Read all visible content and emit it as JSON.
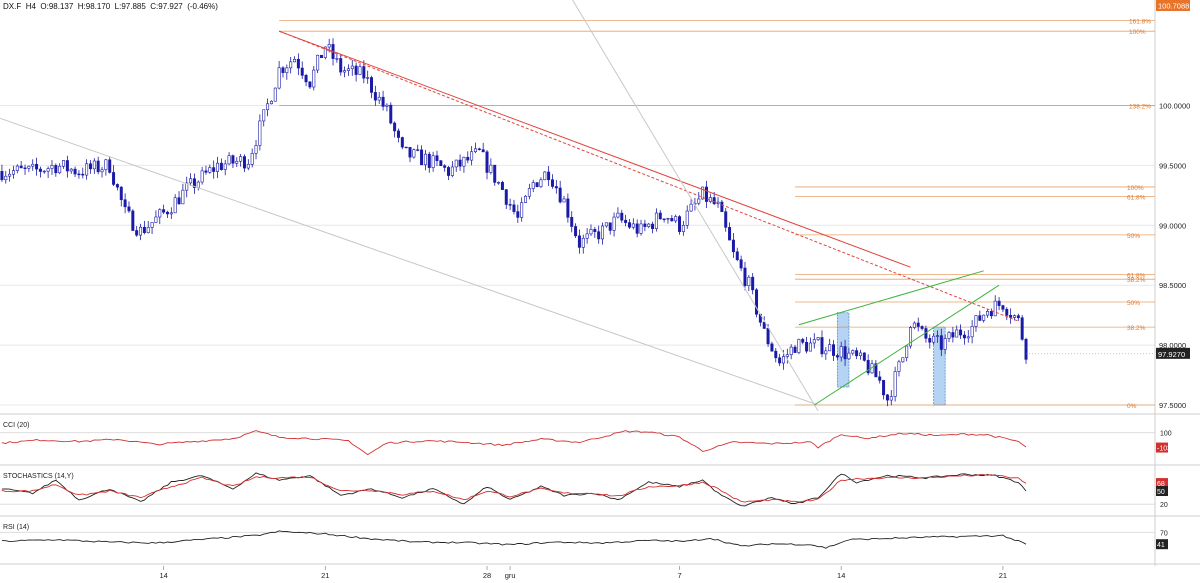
{
  "header": {
    "symbol": "DX.F",
    "timeframe": "H4",
    "open": "O:98.137",
    "high": "H:98.170",
    "low": "L:97.885",
    "close": "C:97.927",
    "change": "(-0.46%)"
  },
  "colors": {
    "up_candle": "#ffffff",
    "down_candle": "#1a1aa8",
    "wick": "#1a1aa8",
    "trend_red": "#e0443c",
    "channel_green": "#3cb43c",
    "fib_orange": "#e07a2a",
    "price_marker": "#222222",
    "top_marker": "#e8742a",
    "highlight_box": "#9cc4ee",
    "grid": "#e8e8e8",
    "indicator_red": "#d43030",
    "indicator_black": "#222222"
  },
  "chart_data": {
    "type": "candlestick",
    "title": "",
    "price_axis": {
      "ticks": [
        "100.0000",
        "99.5000",
        "99.0000",
        "98.5000",
        "98.0000",
        "97.5000"
      ],
      "tick_values": [
        100.0,
        99.5,
        99.0,
        98.5,
        98.0,
        97.5
      ],
      "range": [
        97.45,
        100.78
      ],
      "last_price": "97.9270",
      "last_price_value": 97.927,
      "top_marker": "100.7088",
      "top_marker_value": 100.7088
    },
    "time_axis": {
      "labels": [
        "14",
        "21",
        "28",
        "gru",
        "7",
        "14",
        "21"
      ],
      "label_bar_index": [
        42,
        84,
        126,
        132,
        176,
        218,
        260
      ]
    },
    "bar_count": 300,
    "close_anchors": [
      [
        0,
        99.45
      ],
      [
        8,
        99.45
      ],
      [
        14,
        99.5
      ],
      [
        20,
        99.45
      ],
      [
        28,
        99.5
      ],
      [
        32,
        99.1
      ],
      [
        36,
        98.95
      ],
      [
        42,
        99.1
      ],
      [
        48,
        99.3
      ],
      [
        56,
        99.5
      ],
      [
        64,
        99.55
      ],
      [
        68,
        99.9
      ],
      [
        72,
        100.3
      ],
      [
        76,
        100.4
      ],
      [
        80,
        100.2
      ],
      [
        84,
        100.5
      ],
      [
        88,
        100.3
      ],
      [
        94,
        100.25
      ],
      [
        100,
        99.95
      ],
      [
        104,
        99.6
      ],
      [
        110,
        99.55
      ],
      [
        116,
        99.45
      ],
      [
        124,
        99.6
      ],
      [
        130,
        99.3
      ],
      [
        134,
        99.05
      ],
      [
        138,
        99.35
      ],
      [
        142,
        99.45
      ],
      [
        146,
        99.2
      ],
      [
        150,
        98.85
      ],
      [
        156,
        98.95
      ],
      [
        160,
        99.05
      ],
      [
        166,
        98.95
      ],
      [
        172,
        99.1
      ],
      [
        176,
        99.0
      ],
      [
        182,
        99.25
      ],
      [
        186,
        99.15
      ],
      [
        190,
        98.75
      ],
      [
        194,
        98.5
      ],
      [
        198,
        98.1
      ],
      [
        202,
        97.85
      ],
      [
        206,
        98.0
      ],
      [
        212,
        98.0
      ],
      [
        218,
        97.95
      ],
      [
        224,
        97.85
      ],
      [
        228,
        97.7
      ],
      [
        230,
        97.55
      ],
      [
        234,
        97.9
      ],
      [
        236,
        98.2
      ],
      [
        240,
        98.05
      ],
      [
        244,
        98.0
      ],
      [
        248,
        98.1
      ],
      [
        252,
        98.15
      ],
      [
        256,
        98.3
      ],
      [
        260,
        98.35
      ],
      [
        264,
        98.2
      ],
      [
        266,
        97.95
      ]
    ],
    "fibonacci_upper": [
      {
        "label": "161.8%",
        "price": 100.7088
      },
      {
        "label": "100%",
        "price": 100.62
      },
      {
        "label": "138.2%",
        "price": 100.0
      }
    ],
    "fibonacci_lower": [
      {
        "label": "100%",
        "price": 99.32
      },
      {
        "label": "61.8%",
        "price": 99.24
      },
      {
        "label": "50%",
        "price": 98.92
      },
      {
        "label": "61.8%",
        "price": 98.59
      },
      {
        "label": "38.2%",
        "price": 98.55
      },
      {
        "label": "50%",
        "price": 98.36
      },
      {
        "label": "38.2%",
        "price": 98.15
      },
      {
        "label": "0%",
        "price": 97.5
      }
    ],
    "trendlines": [
      {
        "name": "red-downtrend-solid",
        "style": "solid",
        "color": "#e0443c",
        "from": [
          72,
          100.62
        ],
        "to": [
          236,
          98.65
        ]
      },
      {
        "name": "red-downtrend-dashed",
        "style": "dashed",
        "color": "#e0443c",
        "from": [
          72,
          100.62
        ],
        "to": [
          264,
          98.2
        ]
      },
      {
        "name": "grey-lower-channel",
        "style": "solid",
        "color": "#c8c8c8",
        "from": [
          -10,
          100.0
        ],
        "to": [
          212,
          97.5
        ]
      },
      {
        "name": "grey-diagonal",
        "style": "solid",
        "color": "#c8c8c8",
        "from": [
          146,
          101.0
        ],
        "to": [
          212,
          97.45
        ]
      },
      {
        "name": "green-channel-top",
        "style": "solid",
        "color": "#3cb43c",
        "from": [
          207,
          98.17
        ],
        "to": [
          255,
          98.62
        ]
      },
      {
        "name": "green-channel-bottom",
        "style": "solid",
        "color": "#3cb43c",
        "from": [
          211,
          97.5
        ],
        "to": [
          259,
          98.5
        ]
      }
    ],
    "highlight_boxes": [
      {
        "from_bar": 217,
        "to_bar": 220,
        "from_price": 97.65,
        "to_price": 98.27
      },
      {
        "from_bar": 242,
        "to_bar": 245,
        "from_price": 97.5,
        "to_price": 98.15
      }
    ],
    "indicators": [
      {
        "name": "CCI (20)",
        "levels": [
          "100"
        ],
        "level_values": [
          100
        ],
        "range": [
          -300,
          300
        ],
        "marker": "-103",
        "marker_value": -103,
        "marker_color": "#d43030",
        "lines": [
          {
            "color": "#d43030",
            "anchors": [
              [
                0,
                -40
              ],
              [
                10,
                0
              ],
              [
                20,
                -20
              ],
              [
                30,
                10
              ],
              [
                40,
                -60
              ],
              [
                50,
                -20
              ],
              [
                60,
                20
              ],
              [
                66,
                120
              ],
              [
                72,
                40
              ],
              [
                84,
                10
              ],
              [
                90,
                -10
              ],
              [
                95,
                -200
              ],
              [
                100,
                -40
              ],
              [
                110,
                -10
              ],
              [
                120,
                -30
              ],
              [
                130,
                -70
              ],
              [
                140,
                10
              ],
              [
                150,
                -30
              ],
              [
                162,
                120
              ],
              [
                168,
                110
              ],
              [
                176,
                40
              ],
              [
                182,
                -150
              ],
              [
                190,
                -30
              ],
              [
                200,
                -50
              ],
              [
                210,
                -30
              ],
              [
                212,
                -100
              ],
              [
                218,
                80
              ],
              [
                224,
                20
              ],
              [
                234,
                90
              ],
              [
                244,
                60
              ],
              [
                250,
                80
              ],
              [
                256,
                70
              ],
              [
                264,
                -20
              ],
              [
                266,
                -103
              ]
            ]
          }
        ]
      },
      {
        "name": "STOCHASTICS (14,Y)",
        "levels": [
          "20"
        ],
        "level_values": [
          20
        ],
        "range": [
          0,
          100
        ],
        "markers": [
          {
            "text": "68",
            "value": 68,
            "color": "#d43030"
          },
          {
            "text": "50",
            "value": 50,
            "color": "#222222"
          }
        ],
        "lines": [
          {
            "color": "#222222",
            "anchors": [
              [
                0,
                55
              ],
              [
                8,
                45
              ],
              [
                14,
                75
              ],
              [
                20,
                30
              ],
              [
                28,
                55
              ],
              [
                36,
                25
              ],
              [
                44,
                70
              ],
              [
                52,
                85
              ],
              [
                60,
                55
              ],
              [
                66,
                90
              ],
              [
                72,
                75
              ],
              [
                80,
                85
              ],
              [
                88,
                40
              ],
              [
                96,
                55
              ],
              [
                104,
                35
              ],
              [
                112,
                55
              ],
              [
                120,
                20
              ],
              [
                126,
                60
              ],
              [
                132,
                30
              ],
              [
                140,
                60
              ],
              [
                146,
                40
              ],
              [
                154,
                45
              ],
              [
                160,
                30
              ],
              [
                168,
                70
              ],
              [
                176,
                60
              ],
              [
                182,
                75
              ],
              [
                186,
                45
              ],
              [
                192,
                15
              ],
              [
                200,
                35
              ],
              [
                206,
                20
              ],
              [
                212,
                35
              ],
              [
                218,
                90
              ],
              [
                222,
                70
              ],
              [
                230,
                85
              ],
              [
                240,
                80
              ],
              [
                250,
                88
              ],
              [
                258,
                85
              ],
              [
                264,
                70
              ],
              [
                266,
                50
              ]
            ]
          },
          {
            "color": "#d43030",
            "anchors": [
              [
                0,
                50
              ],
              [
                8,
                50
              ],
              [
                14,
                65
              ],
              [
                20,
                40
              ],
              [
                28,
                50
              ],
              [
                36,
                35
              ],
              [
                44,
                60
              ],
              [
                52,
                80
              ],
              [
                60,
                60
              ],
              [
                66,
                82
              ],
              [
                72,
                80
              ],
              [
                80,
                82
              ],
              [
                88,
                50
              ],
              [
                96,
                52
              ],
              [
                104,
                42
              ],
              [
                112,
                50
              ],
              [
                120,
                30
              ],
              [
                126,
                50
              ],
              [
                132,
                38
              ],
              [
                140,
                55
              ],
              [
                146,
                45
              ],
              [
                154,
                45
              ],
              [
                160,
                38
              ],
              [
                168,
                60
              ],
              [
                176,
                62
              ],
              [
                182,
                70
              ],
              [
                186,
                55
              ],
              [
                192,
                25
              ],
              [
                200,
                30
              ],
              [
                206,
                25
              ],
              [
                212,
                30
              ],
              [
                218,
                75
              ],
              [
                222,
                78
              ],
              [
                230,
                80
              ],
              [
                240,
                80
              ],
              [
                250,
                85
              ],
              [
                258,
                86
              ],
              [
                264,
                78
              ],
              [
                266,
                68
              ]
            ]
          }
        ]
      },
      {
        "name": "RSI (14)",
        "levels": [
          "70"
        ],
        "level_values": [
          70
        ],
        "range": [
          0,
          100
        ],
        "marker": "41",
        "marker_value": 41,
        "marker_color": "#222222",
        "lines": [
          {
            "color": "#222222",
            "anchors": [
              [
                0,
                48
              ],
              [
                14,
                52
              ],
              [
                28,
                46
              ],
              [
                40,
                44
              ],
              [
                54,
                54
              ],
              [
                66,
                62
              ],
              [
                72,
                72
              ],
              [
                84,
                66
              ],
              [
                96,
                54
              ],
              [
                108,
                46
              ],
              [
                120,
                45
              ],
              [
                132,
                40
              ],
              [
                144,
                46
              ],
              [
                156,
                44
              ],
              [
                168,
                50
              ],
              [
                178,
                48
              ],
              [
                184,
                56
              ],
              [
                192,
                36
              ],
              [
                200,
                42
              ],
              [
                210,
                40
              ],
              [
                214,
                32
              ],
              [
                220,
                52
              ],
              [
                230,
                55
              ],
              [
                240,
                58
              ],
              [
                250,
                60
              ],
              [
                260,
                62
              ],
              [
                266,
                41
              ]
            ]
          }
        ]
      }
    ]
  }
}
